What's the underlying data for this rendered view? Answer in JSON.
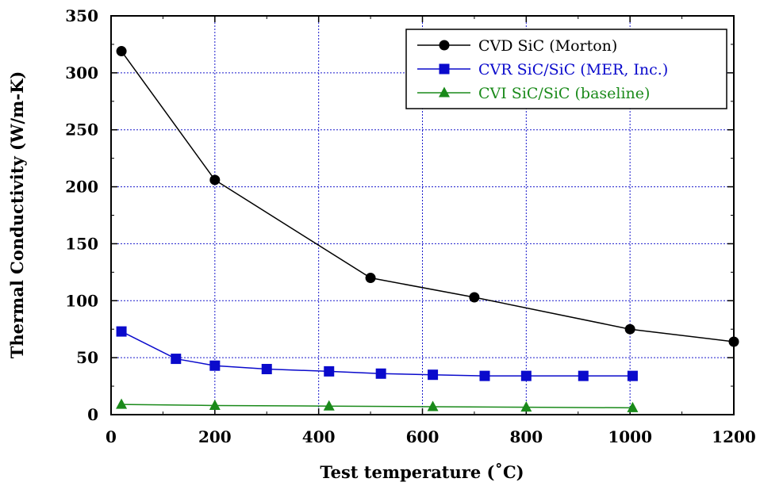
{
  "chart_data": {
    "type": "line",
    "title": "",
    "xlabel": "Test temperature (˚C)",
    "ylabel": "Thermal Conductivity (W/m-K)",
    "xlim": [
      0,
      1200
    ],
    "ylim": [
      0,
      350
    ],
    "xticks": [
      "0",
      "200",
      "400",
      "600",
      "800",
      "1000",
      "1200"
    ],
    "yticks": [
      "0",
      "50",
      "100",
      "150",
      "200",
      "250",
      "300",
      "350"
    ],
    "grid": true,
    "grid_color": "#1a1acc",
    "legend_position": "top-right",
    "series": [
      {
        "name": "CVD SiC (Morton)",
        "color": "#000000",
        "marker": "circle",
        "points": [
          [
            20,
            319
          ],
          [
            200,
            206
          ],
          [
            500,
            120
          ],
          [
            700,
            103
          ],
          [
            1000,
            75
          ],
          [
            1200,
            64
          ]
        ]
      },
      {
        "name": "CVR SiC/SiC (MER, Inc.)",
        "color": "#0a0acc",
        "marker": "square",
        "points": [
          [
            20,
            73
          ],
          [
            125,
            49
          ],
          [
            200,
            43
          ],
          [
            300,
            40
          ],
          [
            420,
            38
          ],
          [
            520,
            36
          ],
          [
            620,
            35
          ],
          [
            720,
            34
          ],
          [
            800,
            34
          ],
          [
            910,
            34
          ],
          [
            1005,
            34
          ]
        ]
      },
      {
        "name": "CVI SiC/SiC (baseline)",
        "color": "#1a8a1a",
        "marker": "triangle",
        "points": [
          [
            20,
            9
          ],
          [
            200,
            8
          ],
          [
            420,
            7.5
          ],
          [
            620,
            7
          ],
          [
            800,
            6.5
          ],
          [
            1005,
            6
          ]
        ]
      }
    ]
  }
}
